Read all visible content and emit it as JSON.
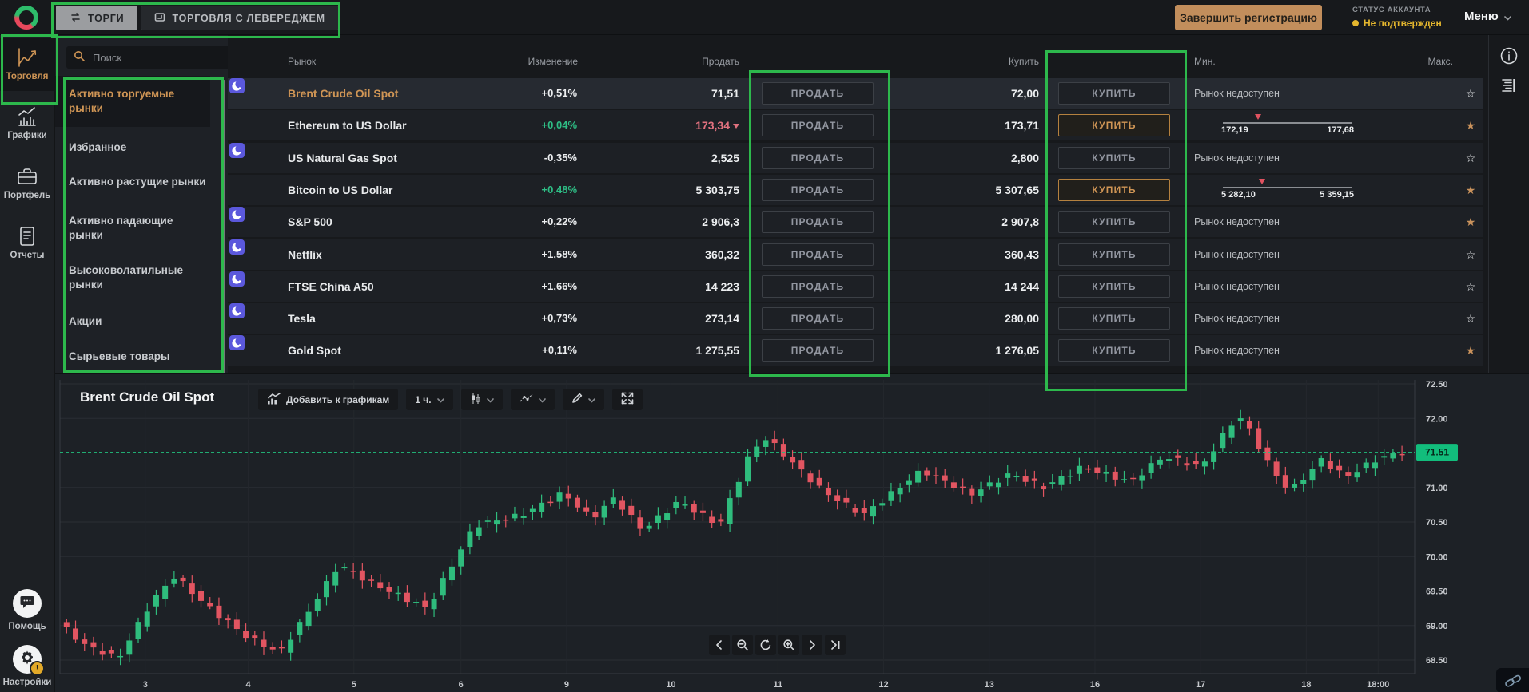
{
  "colors": {
    "accent_orange": "#cf9555",
    "green": "#2ebd85",
    "red_pink": "#e0717e",
    "annotation_green": "#2db84c",
    "price_tag_green": "#12bd7c",
    "status_yellow": "#e5b72e",
    "candle_up": "#2fbc7d",
    "candle_down": "#e25561"
  },
  "topbar": {
    "tabs": [
      {
        "label": "ТОРГИ",
        "icon": "swap",
        "active": true
      },
      {
        "label": "ТОРГОВЛЯ С ЛЕВЕРЕДЖЕМ",
        "icon": "leverage",
        "active": false
      }
    ],
    "complete_registration": "Завершить регистрацию",
    "account_status_label": "СТАТУС АККАУНТА",
    "account_status_value": "Не подтвержден",
    "menu_label": "Меню"
  },
  "sidebar": {
    "items": [
      {
        "label": "Торговля",
        "icon": "trade",
        "active": true
      },
      {
        "label": "Графики",
        "icon": "charts",
        "active": false
      },
      {
        "label": "Портфель",
        "icon": "portfolio",
        "active": false
      },
      {
        "label": "Отчеты",
        "icon": "reports",
        "active": false
      }
    ],
    "bottom_items": [
      {
        "label": "Помощь",
        "icon": "help",
        "badge": ""
      },
      {
        "label": "Настройки",
        "icon": "gear",
        "badge": "!"
      }
    ]
  },
  "watchlist": {
    "search_placeholder": "Поиск",
    "categories": [
      {
        "label": "Активно торгуемые\nрынки",
        "active": true
      },
      {
        "label": "Избранное",
        "active": false
      },
      {
        "label": "Активно растущие рынки",
        "active": false
      },
      {
        "label": "Активно падающие\nрынки",
        "active": false
      },
      {
        "label": "Высоковолатильные\nрынки",
        "active": false
      },
      {
        "label": "Акции",
        "active": false
      },
      {
        "label": "Сырьевые товары",
        "active": false
      }
    ]
  },
  "market_table": {
    "columns": [
      "Рынок",
      "Изменение",
      "Продать",
      "Купить",
      "Мин.",
      "Макс."
    ],
    "sell_button_label": "ПРОДАТЬ",
    "buy_button_label": "КУПИТЬ",
    "unavailable_label": "Рынок недоступен",
    "rows": [
      {
        "name": "Brent Crude Oil Spot",
        "selected": true,
        "moon": true,
        "change": "+0,51%",
        "change_green": false,
        "sell": "71,51",
        "sell_down": false,
        "buy": "72,00",
        "buy_highlighted": false,
        "range": null,
        "favorite": false
      },
      {
        "name": "Ethereum to US Dollar",
        "selected": false,
        "moon": false,
        "change": "+0,04%",
        "change_green": true,
        "sell": "173,34",
        "sell_down": true,
        "buy": "173,71",
        "buy_highlighted": true,
        "range": {
          "min": "172,19",
          "max": "177,68",
          "marker_pos": 0.27
        },
        "favorite": true
      },
      {
        "name": "US Natural Gas Spot",
        "selected": false,
        "moon": true,
        "change": "-0,35%",
        "change_green": false,
        "sell": "2,525",
        "sell_down": false,
        "buy": "2,800",
        "buy_highlighted": false,
        "range": null,
        "favorite": false
      },
      {
        "name": "Bitcoin to US Dollar",
        "selected": false,
        "moon": false,
        "change": "+0,48%",
        "change_green": true,
        "sell": "5 303,75",
        "sell_down": false,
        "buy": "5 307,65",
        "buy_highlighted": true,
        "range": {
          "min": "5 282,10",
          "max": "5 359,15",
          "marker_pos": 0.3
        },
        "favorite": true
      },
      {
        "name": "S&P 500",
        "selected": false,
        "moon": true,
        "change": "+0,22%",
        "change_green": false,
        "sell": "2 906,3",
        "sell_down": false,
        "buy": "2 907,8",
        "buy_highlighted": false,
        "range": null,
        "favorite": true
      },
      {
        "name": "Netflix",
        "selected": false,
        "moon": true,
        "change": "+1,58%",
        "change_green": false,
        "sell": "360,32",
        "sell_down": false,
        "buy": "360,43",
        "buy_highlighted": false,
        "range": null,
        "favorite": false
      },
      {
        "name": "FTSE China A50",
        "selected": false,
        "moon": true,
        "change": "+1,66%",
        "change_green": false,
        "sell": "14 223",
        "sell_down": false,
        "buy": "14 244",
        "buy_highlighted": false,
        "range": null,
        "favorite": false
      },
      {
        "name": "Tesla",
        "selected": false,
        "moon": true,
        "change": "+0,73%",
        "change_green": false,
        "sell": "273,14",
        "sell_down": false,
        "buy": "280,00",
        "buy_highlighted": false,
        "range": null,
        "favorite": false
      },
      {
        "name": "Gold Spot",
        "selected": false,
        "moon": true,
        "change": "+0,11%",
        "change_green": false,
        "sell": "1 275,55",
        "sell_down": false,
        "buy": "1 276,05",
        "buy_highlighted": false,
        "range": null,
        "favorite": true
      }
    ]
  },
  "chart": {
    "title": "Brent Crude Oil Spot",
    "toolbar": {
      "add_to_charts": "Добавить к графикам",
      "timeframe": "1 ч."
    },
    "current_price_tag": "71.51"
  },
  "chart_data": {
    "type": "candlestick",
    "title": "Brent Crude Oil Spot",
    "timeframe_label": "1 ч.",
    "current_price": 71.51,
    "ylim": [
      68.35,
      72.62
    ],
    "y_ticks": [
      "72.50",
      "72.00",
      "71.00",
      "70.50",
      "70.00",
      "69.50",
      "69.00",
      "68.50"
    ],
    "grid_step": 0.5,
    "x_ticks": [
      {
        "label": "3",
        "f": 0.063
      },
      {
        "label": "4",
        "f": 0.139
      },
      {
        "label": "5",
        "f": 0.217
      },
      {
        "label": "6",
        "f": 0.296
      },
      {
        "label": "9",
        "f": 0.374
      },
      {
        "label": "10",
        "f": 0.451
      },
      {
        "label": "11",
        "f": 0.53
      },
      {
        "label": "12",
        "f": 0.608
      },
      {
        "label": "13",
        "f": 0.686
      },
      {
        "label": "16",
        "f": 0.764
      },
      {
        "label": "17",
        "f": 0.842
      },
      {
        "label": "18",
        "f": 0.92
      },
      {
        "label": "18:00",
        "f": 0.973
      }
    ],
    "price_path": [
      [
        0,
        69.05
      ],
      [
        0.02,
        68.72
      ],
      [
        0.045,
        68.52
      ],
      [
        0.07,
        69.35
      ],
      [
        0.087,
        69.72
      ],
      [
        0.11,
        69.3
      ],
      [
        0.14,
        68.85
      ],
      [
        0.165,
        68.6
      ],
      [
        0.19,
        69.3
      ],
      [
        0.209,
        69.88
      ],
      [
        0.235,
        69.6
      ],
      [
        0.275,
        69.25
      ],
      [
        0.31,
        70.45
      ],
      [
        0.345,
        70.6
      ],
      [
        0.376,
        70.92
      ],
      [
        0.397,
        70.55
      ],
      [
        0.414,
        70.85
      ],
      [
        0.435,
        70.38
      ],
      [
        0.462,
        70.8
      ],
      [
        0.492,
        70.45
      ],
      [
        0.515,
        71.5
      ],
      [
        0.527,
        71.72
      ],
      [
        0.569,
        70.95
      ],
      [
        0.599,
        70.6
      ],
      [
        0.643,
        71.25
      ],
      [
        0.679,
        70.9
      ],
      [
        0.709,
        71.2
      ],
      [
        0.733,
        71.0
      ],
      [
        0.762,
        71.3
      ],
      [
        0.798,
        71.08
      ],
      [
        0.822,
        71.45
      ],
      [
        0.851,
        71.3
      ],
      [
        0.872,
        71.9
      ],
      [
        0.881,
        72.02
      ],
      [
        0.905,
        71.2
      ],
      [
        0.917,
        70.95
      ],
      [
        0.94,
        71.4
      ],
      [
        0.958,
        71.15
      ],
      [
        0.982,
        71.42
      ],
      [
        1,
        71.51
      ]
    ],
    "num_candles": 150,
    "legend": "none",
    "grid": true
  }
}
